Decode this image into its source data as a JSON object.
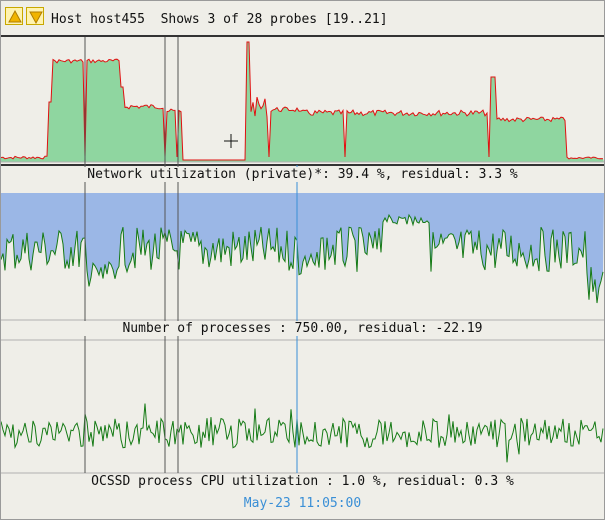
{
  "header": {
    "title": "Host host455  Shows 3 of 28 probes [19..21]",
    "up_icon": "arrow-up-icon",
    "down_icon": "arrow-down-icon"
  },
  "colors": {
    "network_fill": "#8fd6a0",
    "network_line": "#e01010",
    "process_fill": "#9bb7e6",
    "process_line": "#157a15",
    "cpu_line": "#157a15",
    "cursor_line": "#3a8fd6",
    "marker_line": "#555555"
  },
  "probes": [
    {
      "id": "network",
      "label": "Network utilization (private)*: 39.4 %, residual: 3.3 %"
    },
    {
      "id": "processes",
      "label": "Number of processes : 750.00, residual: -22.19"
    },
    {
      "id": "ocssd",
      "label": "OCSSD process CPU utilization : 1.0 %, residual: 0.3 %"
    }
  ],
  "footer": {
    "timestamp": "May-23 11:05:00"
  }
}
